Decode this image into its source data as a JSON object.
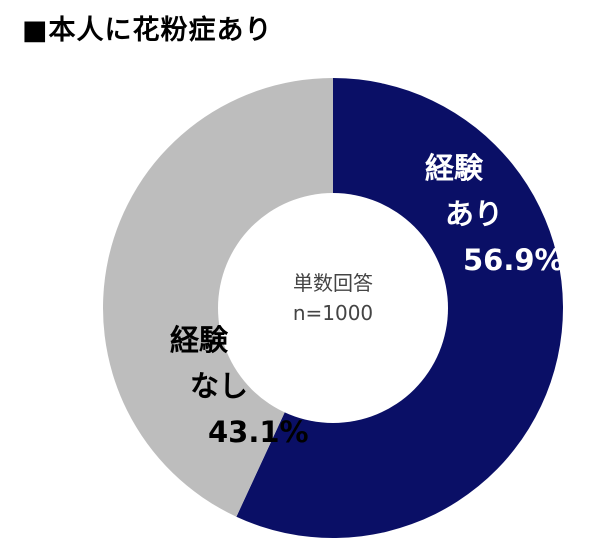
{
  "chart_data": {
    "type": "pie",
    "donut": true,
    "title": "■本人に花粉症あり",
    "center_text": [
      "単数回答",
      "n=1000"
    ],
    "categories": [
      "経験あり",
      "経験なし"
    ],
    "values": [
      56.9,
      43.1
    ],
    "unit": "%",
    "slices": [
      {
        "label_lines": [
          "経験",
          "あり"
        ],
        "value": 56.9,
        "value_text": "56.9%",
        "color": "#0a0f66",
        "text_color": "#ffffff"
      },
      {
        "label_lines": [
          "経験",
          "なし"
        ],
        "value": 43.1,
        "value_text": "43.1%",
        "color": "#bdbdbd",
        "text_color": "#000000"
      }
    ]
  }
}
